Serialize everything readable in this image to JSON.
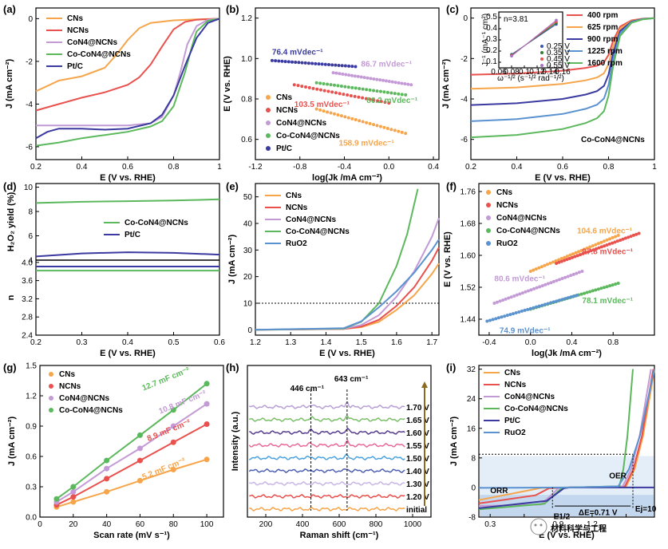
{
  "colors": {
    "CNs": "#f6a54a",
    "NCNs": "#e8514d",
    "CoN4@NCNs": "#c39ad6",
    "Co-CoN4@NCNs": "#5cb85c",
    "Pt/C": "#3a3aa0",
    "RuO2": "#5b92d0"
  },
  "chart_data": [
    {
      "panel": "(a)",
      "type": "line",
      "xlabel": "E (V vs. RHE)",
      "ylabel": "J (mA cm⁻²)",
      "xlim": [
        0.2,
        1.0
      ],
      "ylim": [
        -6.6,
        0.5
      ],
      "xticks": [
        0.2,
        0.4,
        0.6,
        0.8,
        1.0
      ],
      "yticks": [
        0,
        -2,
        -4,
        -6
      ],
      "legend_position": "top-left",
      "series": [
        {
          "name": "CNs",
          "x": [
            0.2,
            0.25,
            0.3,
            0.4,
            0.5,
            0.55,
            0.6,
            0.65,
            0.7,
            0.8,
            0.9,
            1.0
          ],
          "y": [
            -3.4,
            -3.15,
            -2.9,
            -2.7,
            -2.3,
            -1.7,
            -1.0,
            -0.45,
            -0.2,
            -0.08,
            -0.03,
            0
          ]
        },
        {
          "name": "NCNs",
          "x": [
            0.2,
            0.3,
            0.4,
            0.5,
            0.6,
            0.65,
            0.7,
            0.75,
            0.8,
            0.85,
            0.9,
            1.0
          ],
          "y": [
            -4.3,
            -4.0,
            -3.7,
            -3.45,
            -3.1,
            -2.75,
            -2.15,
            -1.3,
            -0.5,
            -0.15,
            -0.05,
            0
          ]
        },
        {
          "name": "CoN4@NCNs",
          "x": [
            0.2,
            0.4,
            0.6,
            0.7,
            0.75,
            0.8,
            0.83,
            0.86,
            0.9,
            0.95,
            1.0
          ],
          "y": [
            -5.0,
            -5.0,
            -5.0,
            -4.9,
            -4.6,
            -3.6,
            -2.5,
            -1.2,
            -0.35,
            -0.05,
            0
          ]
        },
        {
          "name": "Co-CoN4@NCNs",
          "x": [
            0.2,
            0.3,
            0.4,
            0.5,
            0.6,
            0.7,
            0.75,
            0.8,
            0.85,
            0.88,
            0.9,
            0.95,
            1.0
          ],
          "y": [
            -5.95,
            -5.8,
            -5.6,
            -5.45,
            -5.3,
            -5.05,
            -4.8,
            -4.1,
            -2.5,
            -1.3,
            -0.6,
            -0.1,
            0
          ]
        },
        {
          "name": "Pt/C",
          "x": [
            0.2,
            0.25,
            0.3,
            0.4,
            0.5,
            0.6,
            0.7,
            0.75,
            0.8,
            0.85,
            0.9,
            0.95,
            1.0
          ],
          "y": [
            -5.6,
            -5.3,
            -5.15,
            -5.15,
            -5.2,
            -5.15,
            -4.9,
            -4.5,
            -3.6,
            -2.2,
            -0.9,
            -0.2,
            0
          ]
        }
      ]
    },
    {
      "panel": "(b)",
      "type": "scatter",
      "xlabel": "log(Jk /mA cm⁻²)",
      "ylabel": "E (V vs. RHE)",
      "xlim": [
        -1.2,
        0.45
      ],
      "ylim": [
        0.5,
        1.25
      ],
      "xticks": [
        -1.2,
        -0.8,
        -0.4,
        0.0,
        0.4
      ],
      "yticks": [
        0.6,
        0.8,
        1.0,
        1.2
      ],
      "legend_position": "bottom-left",
      "series": [
        {
          "name": "CNs",
          "x_range": [
            -0.65,
            0.15
          ],
          "y_range": [
            0.75,
            0.63
          ]
        },
        {
          "name": "NCNs",
          "x_range": [
            -0.85,
            0.0
          ],
          "y_range": [
            0.87,
            0.78
          ]
        },
        {
          "name": "CoN4@NCNs",
          "x_range": [
            -0.5,
            0.2
          ],
          "y_range": [
            0.93,
            0.87
          ]
        },
        {
          "name": "Co-CoN4@NCNs",
          "x_range": [
            -0.65,
            0.15
          ],
          "y_range": [
            0.88,
            0.82
          ]
        },
        {
          "name": "Pt/C",
          "x_range": [
            -1.05,
            -0.3
          ],
          "y_range": [
            0.99,
            0.96
          ]
        }
      ],
      "annotations": [
        "76.4 mVdec⁻¹",
        "86.7 mVdec⁻¹",
        "103.5 mVdec⁻¹",
        "80.2 mVdec⁻¹",
        "158.9 mVdec⁻¹"
      ]
    },
    {
      "panel": "(c)",
      "type": "line",
      "xlabel": "E (V vs. RHE)",
      "ylabel": "J (mA cm⁻²)",
      "xlim": [
        0.2,
        1.0
      ],
      "ylim": [
        -7,
        0.5
      ],
      "xticks": [
        0.2,
        0.4,
        0.6,
        0.8,
        1.0
      ],
      "yticks": [
        0,
        -2,
        -4,
        -6
      ],
      "legend_position": "top-right",
      "caption": "Co-CoN4@NCNs",
      "series": [
        {
          "name": "400 rpm",
          "plateau": -2.8
        },
        {
          "name": "625 rpm",
          "plateau": -3.5
        },
        {
          "name": "900 rpm",
          "plateau": -4.3
        },
        {
          "name": "1225 rpm",
          "plateau": -5.1
        },
        {
          "name": "1600 rpm",
          "plateau": -5.9
        }
      ],
      "inset": {
        "type": "line",
        "xlabel": "ω⁻¹/² (s⁻¹/² rad⁻¹/²)",
        "ylabel": "J⁻¹ (mA⁻¹ cm²)",
        "xticks": [
          0.06,
          0.08,
          0.1,
          0.12,
          0.14,
          0.16
        ],
        "yticks": [
          0.1,
          0.2,
          0.3,
          0.4,
          0.5
        ],
        "annotation": "n=3.81",
        "series": [
          {
            "name": "0.25 V",
            "color": "#3a56b0"
          },
          {
            "name": "0.35 V",
            "color": "#2f7d2f"
          },
          {
            "name": "0.45 V",
            "color": "#e8514d"
          },
          {
            "name": "0.55 V",
            "color": "#a76fc5"
          }
        ]
      }
    },
    {
      "panel": "(d)",
      "type": "line",
      "xlabel": "E (V vs. RHE)",
      "ylabel_top": "H₂O₂ yield (%)",
      "ylabel_bottom": "n",
      "xlim": [
        0.2,
        0.6
      ],
      "xticks": [
        0.2,
        0.3,
        0.4,
        0.5,
        0.6
      ],
      "yticks_top": [
        4,
        6,
        8,
        10
      ],
      "yticks_bottom": [
        2.4,
        2.8,
        3.2,
        3.6,
        4.0
      ],
      "legend_position": "middle",
      "series_top": [
        {
          "name": "Co-CoN4@NCNs",
          "x": [
            0.2,
            0.3,
            0.4,
            0.5,
            0.6
          ],
          "y": [
            8.7,
            8.8,
            8.85,
            8.9,
            9.0
          ]
        },
        {
          "name": "Pt/C",
          "x": [
            0.2,
            0.3,
            0.4,
            0.5,
            0.6
          ],
          "y": [
            4.3,
            4.55,
            4.65,
            4.6,
            4.45
          ]
        }
      ],
      "series_bottom": [
        {
          "name": "Co-CoN4@NCNs",
          "x": [
            0.2,
            0.6
          ],
          "y": [
            3.82,
            3.82
          ]
        },
        {
          "name": "Pt/C",
          "x": [
            0.2,
            0.6
          ],
          "y": [
            3.91,
            3.91
          ]
        }
      ]
    },
    {
      "panel": "(e)",
      "type": "line",
      "xlabel": "E (V vs. RHE)",
      "ylabel": "J (mA cm⁻²)",
      "xlim": [
        1.2,
        1.72
      ],
      "ylim": [
        -2,
        55
      ],
      "xticks": [
        1.2,
        1.3,
        1.4,
        1.5,
        1.6,
        1.7
      ],
      "yticks": [
        0,
        10,
        20,
        30,
        40,
        50
      ],
      "reference_line": 10,
      "legend_position": "top-left",
      "series": [
        {
          "name": "CNs",
          "x": [
            1.2,
            1.45,
            1.5,
            1.55,
            1.6,
            1.65,
            1.7,
            1.72
          ],
          "y": [
            0,
            0.3,
            1.0,
            3.0,
            7.5,
            13,
            21,
            25
          ]
        },
        {
          "name": "NCNs",
          "x": [
            1.2,
            1.45,
            1.5,
            1.55,
            1.6,
            1.65,
            1.7,
            1.72
          ],
          "y": [
            0,
            0.3,
            1.2,
            3.8,
            9,
            16,
            26,
            31
          ]
        },
        {
          "name": "CoN4@NCNs",
          "x": [
            1.2,
            1.45,
            1.5,
            1.55,
            1.6,
            1.65,
            1.7,
            1.72
          ],
          "y": [
            0,
            0.4,
            1.8,
            5.5,
            12.5,
            22,
            35,
            42
          ]
        },
        {
          "name": "Co-CoN4@NCNs",
          "x": [
            1.2,
            1.45,
            1.5,
            1.55,
            1.6,
            1.63,
            1.66
          ],
          "y": [
            0,
            0.5,
            3,
            10,
            24,
            36,
            53
          ]
        },
        {
          "name": "RuO2",
          "x": [
            1.2,
            1.45,
            1.5,
            1.55,
            1.6,
            1.65,
            1.7,
            1.72
          ],
          "y": [
            0,
            0.6,
            3.2,
            8.5,
            14.5,
            21.5,
            30,
            34
          ]
        }
      ]
    },
    {
      "panel": "(f)",
      "type": "scatter",
      "xlabel": "log(Jk /mA cm⁻²)",
      "ylabel": "E (V vs. RHE)",
      "xlim": [
        -0.5,
        1.2
      ],
      "ylim": [
        1.4,
        1.78
      ],
      "xticks": [
        -0.4,
        0.0,
        0.4,
        0.8
      ],
      "yticks": [
        1.44,
        1.52,
        1.6,
        1.68,
        1.76
      ],
      "legend_position": "top-left",
      "series": [
        {
          "name": "CNs",
          "x_range": [
            0.0,
            0.85
          ],
          "y_range": [
            1.56,
            1.65
          ]
        },
        {
          "name": "NCNs",
          "x_range": [
            0.25,
            1.05
          ],
          "y_range": [
            1.58,
            1.655
          ]
        },
        {
          "name": "CoN4@NCNs",
          "x_range": [
            -0.35,
            0.5
          ],
          "y_range": [
            1.48,
            1.56
          ]
        },
        {
          "name": "Co-CoN4@NCNs",
          "x_range": [
            0.0,
            0.85
          ],
          "y_range": [
            1.465,
            1.53
          ]
        },
        {
          "name": "RuO2",
          "x_range": [
            -0.42,
            0.45
          ],
          "y_range": [
            1.435,
            1.5
          ]
        }
      ],
      "annotations": [
        "104.6 mVdec⁻¹",
        "97.8 mVdec⁻¹",
        "80.6 mVdec⁻¹",
        "78.1 mVdec⁻¹",
        "74.9 mVdec⁻¹"
      ]
    },
    {
      "panel": "(g)",
      "type": "line",
      "xlabel": "Scan rate (mV s⁻¹)",
      "ylabel": "J (mA cm⁻²)",
      "xlim": [
        0,
        110
      ],
      "ylim": [
        0,
        1.5
      ],
      "xticks": [
        0,
        20,
        40,
        60,
        80,
        100
      ],
      "yticks": [
        0.0,
        0.3,
        0.6,
        0.9,
        1.2,
        1.5
      ],
      "legend_position": "top-left",
      "series": [
        {
          "name": "CNs",
          "x": [
            10,
            20,
            40,
            60,
            80,
            100
          ],
          "y": [
            0.1,
            0.15,
            0.25,
            0.36,
            0.47,
            0.57
          ]
        },
        {
          "name": "NCNs",
          "x": [
            10,
            20,
            40,
            60,
            80,
            100
          ],
          "y": [
            0.12,
            0.2,
            0.38,
            0.56,
            0.74,
            0.92
          ]
        },
        {
          "name": "CoN4@NCNs",
          "x": [
            10,
            20,
            40,
            60,
            80,
            100
          ],
          "y": [
            0.15,
            0.25,
            0.48,
            0.68,
            0.9,
            1.12
          ]
        },
        {
          "name": "Co-CoN4@NCNs",
          "x": [
            10,
            20,
            40,
            60,
            80,
            100
          ],
          "y": [
            0.18,
            0.3,
            0.56,
            0.81,
            1.06,
            1.32
          ]
        }
      ],
      "annotations": [
        "12.7 mF cm⁻²",
        "10.8 mF cm⁻²",
        "8.9 mF cm⁻²",
        "5.2 mF cm⁻²"
      ]
    },
    {
      "panel": "(h)",
      "type": "line",
      "xlabel": "Raman shift (cm⁻¹)",
      "ylabel": "Intensity (a.u.)",
      "xlim": [
        100,
        1100
      ],
      "xticks": [
        200,
        400,
        600,
        800,
        1000
      ],
      "peaks": [
        "446 cm⁻¹",
        "643 cm⁻¹"
      ],
      "series": [
        {
          "name": "1.70 V",
          "color": "#b79fd6"
        },
        {
          "name": "1.65 V",
          "color": "#7cbf6a"
        },
        {
          "name": "1.60 V",
          "color": "#5a3f8f"
        },
        {
          "name": "1.55 V",
          "color": "#e86a9a"
        },
        {
          "name": "1.50 V",
          "color": "#4aa3df"
        },
        {
          "name": "1.40 V",
          "color": "#4c5fb0"
        },
        {
          "name": "1.30 V",
          "color": "#c9b6e6"
        },
        {
          "name": "1.20 V",
          "color": "#e8514d"
        },
        {
          "name": "initial",
          "color": "#f6a54a"
        }
      ]
    },
    {
      "panel": "(i)",
      "type": "line",
      "xlabel": "E (V vs. RHE)",
      "ylabel": "J (mA cm⁻²)",
      "xlim": [
        0.2,
        1.75
      ],
      "ylim": [
        -8,
        33
      ],
      "xticks": [
        0.3,
        0.6,
        0.9,
        1.2,
        1.5
      ],
      "xtick_labels": [
        "0.3",
        "",
        "0.9",
        "1.2",
        ""
      ],
      "yticks": [
        -8,
        0,
        8,
        16,
        24,
        32
      ],
      "legend_position": "top-left",
      "annotations": [
        "ORR",
        "OER",
        "E1/2",
        "ΔE=0.71 V",
        "Ej=10"
      ],
      "series": [
        {
          "name": "CNs"
        },
        {
          "name": "NCNs"
        },
        {
          "name": "CoN4@NCNs"
        },
        {
          "name": "Co-CoN4@NCNs"
        },
        {
          "name": "Pt/C"
        },
        {
          "name": "RuO2"
        }
      ]
    }
  ],
  "labels": {
    "a": "(a)",
    "b": "(b)",
    "c": "(c)",
    "d": "(d)",
    "e": "(e)",
    "f": "(f)",
    "g": "(g)",
    "h": "(h)",
    "i": "(i)"
  },
  "watermark": "材料科学与工程"
}
